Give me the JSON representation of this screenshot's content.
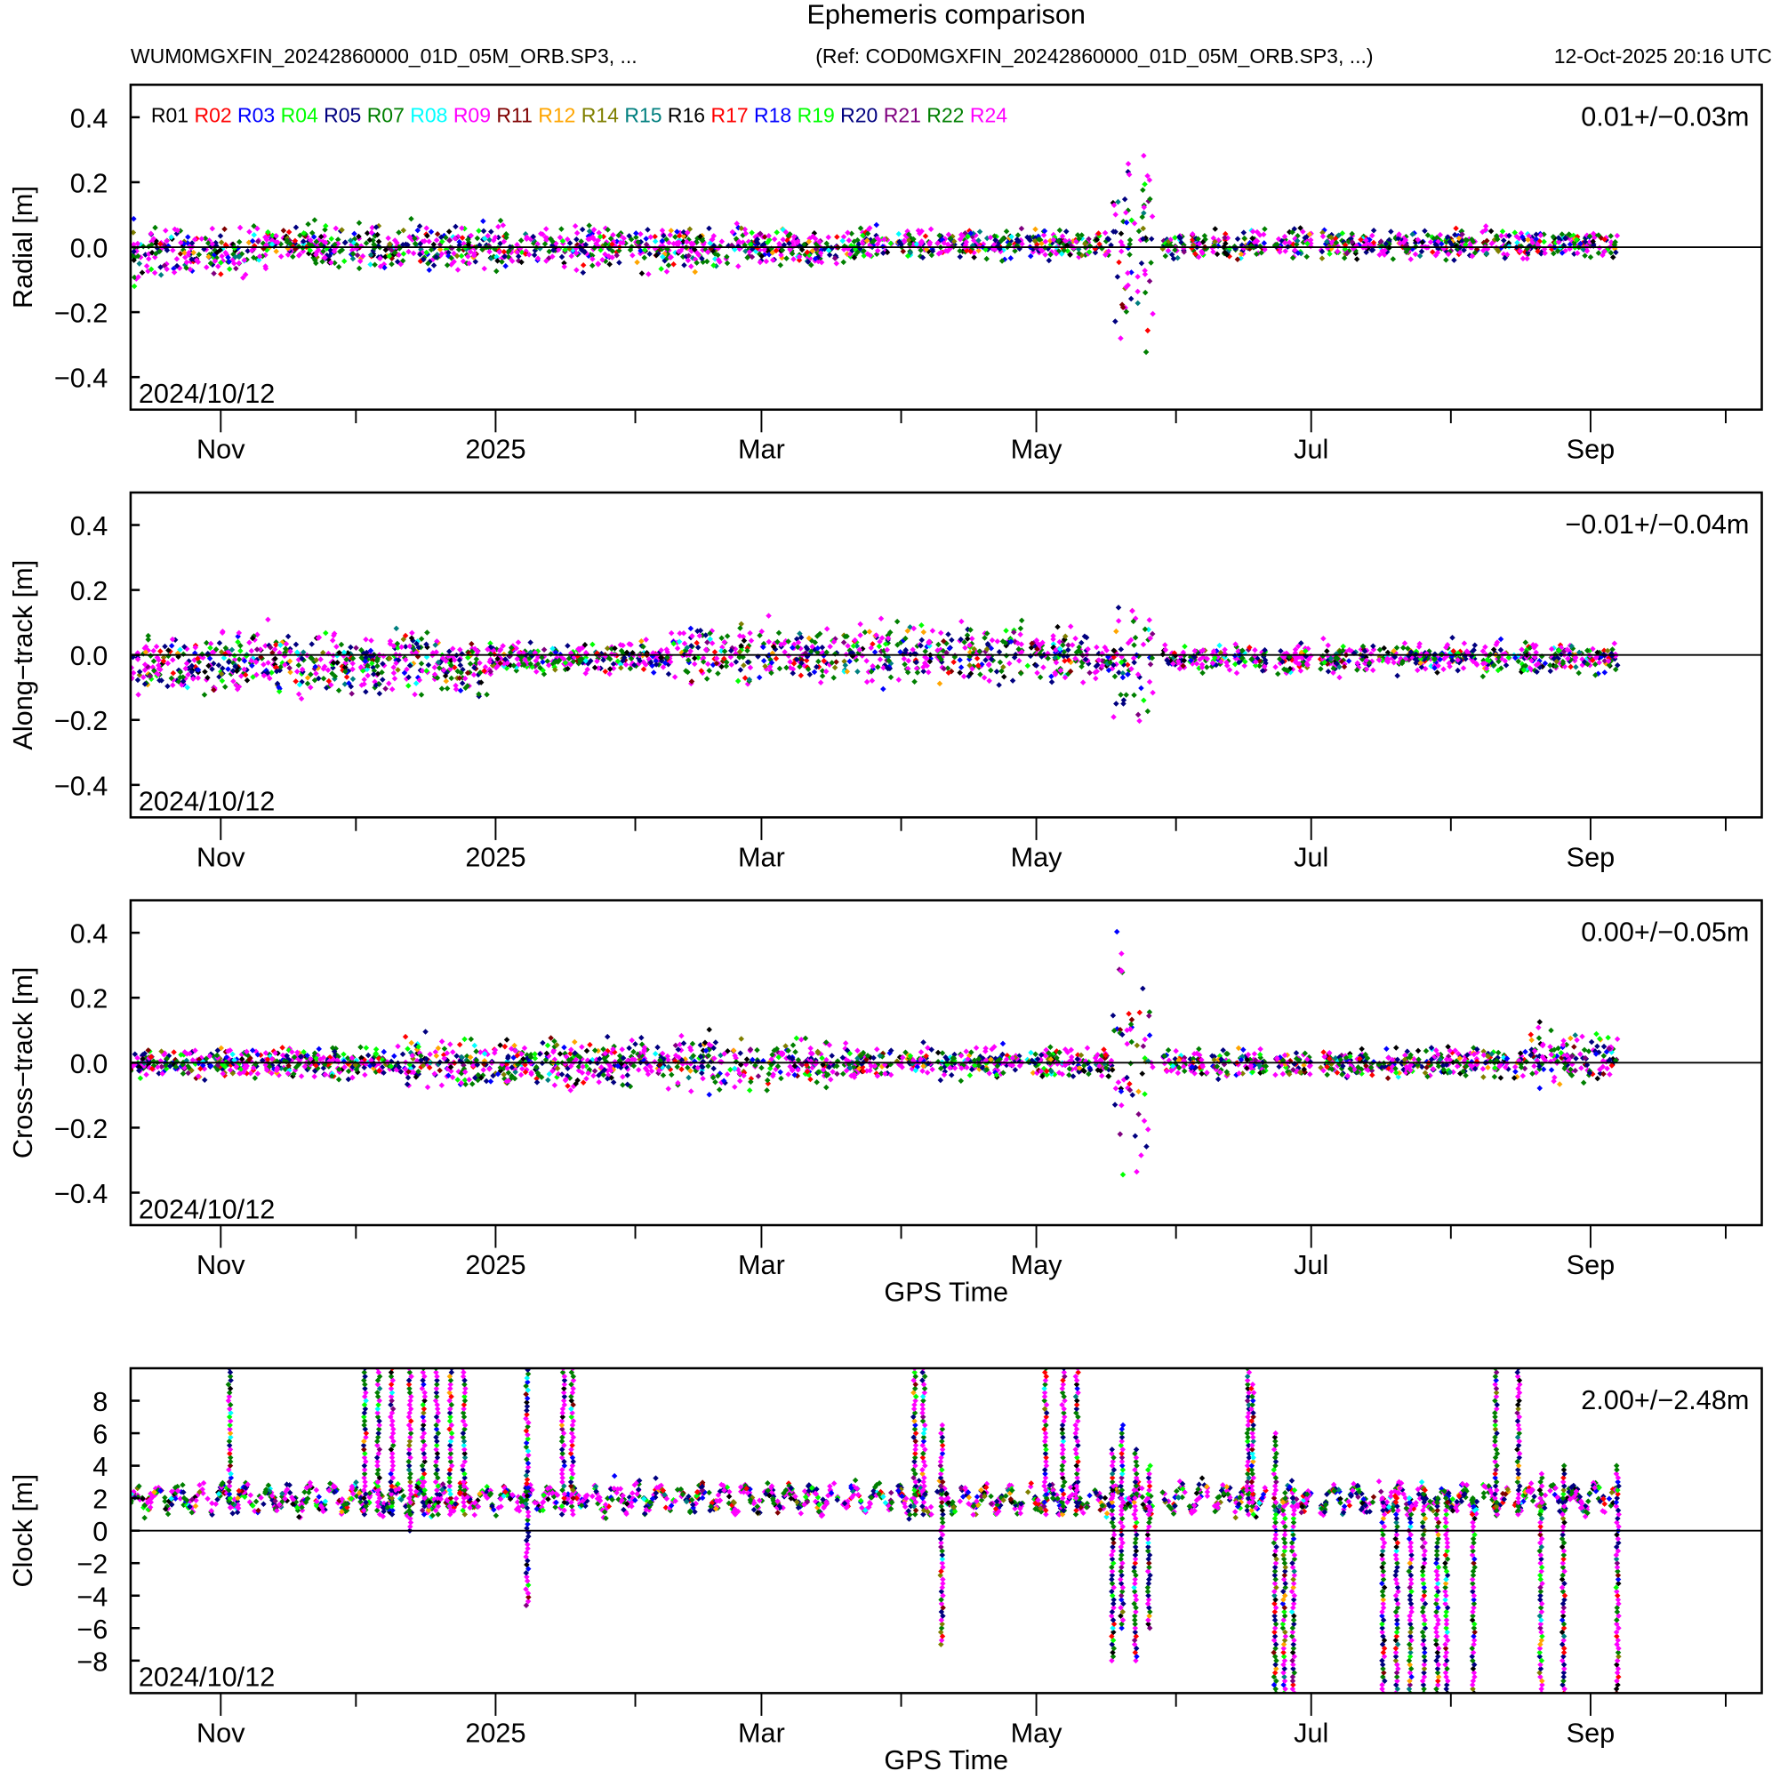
{
  "chart_data": {
    "type": "scatter",
    "title": "Ephemeris comparison",
    "subtitle_left": "WUM0MGXFIN_20242860000_01D_05M_ORB.SP3, ...",
    "subtitle_ref": "(Ref: COD0MGXFIN_20242860000_01D_05M_ORB.SP3, ...)",
    "timestamp": "12-Oct-2025 20:16 UTC",
    "xlabel": "GPS Time",
    "x_units": "days since 2024/10/12",
    "xlim": [
      0,
      362
    ],
    "x_ticks": [
      {
        "label": "Nov",
        "day": 20,
        "major": true
      },
      {
        "label": "",
        "day": 50,
        "major": false
      },
      {
        "label": "2025",
        "day": 81,
        "major": true
      },
      {
        "label": "",
        "day": 112,
        "major": false
      },
      {
        "label": "Mar",
        "day": 140,
        "major": true
      },
      {
        "label": "",
        "day": 171,
        "major": false
      },
      {
        "label": "May",
        "day": 201,
        "major": true
      },
      {
        "label": "",
        "day": 232,
        "major": false
      },
      {
        "label": "Jul",
        "day": 262,
        "major": true
      },
      {
        "label": "",
        "day": 293,
        "major": false
      },
      {
        "label": "Sep",
        "day": 324,
        "major": true
      },
      {
        "label": "",
        "day": 354,
        "major": false
      }
    ],
    "series": [
      {
        "name": "R01",
        "color": "#000000"
      },
      {
        "name": "R02",
        "color": "#ff0000"
      },
      {
        "name": "R03",
        "color": "#0000ff"
      },
      {
        "name": "R04",
        "color": "#00ff00"
      },
      {
        "name": "R05",
        "color": "#00007f"
      },
      {
        "name": "R07",
        "color": "#007f00"
      },
      {
        "name": "R08",
        "color": "#00ffff"
      },
      {
        "name": "R09",
        "color": "#ff00ff"
      },
      {
        "name": "R11",
        "color": "#7f0000"
      },
      {
        "name": "R12",
        "color": "#ffa500"
      },
      {
        "name": "R14",
        "color": "#7f7f00"
      },
      {
        "name": "R15",
        "color": "#007f7f"
      },
      {
        "name": "R16",
        "color": "#000000"
      },
      {
        "name": "R17",
        "color": "#ff0000"
      },
      {
        "name": "R18",
        "color": "#0000ff"
      },
      {
        "name": "R19",
        "color": "#00ff00"
      },
      {
        "name": "R20",
        "color": "#00007f"
      },
      {
        "name": "R21",
        "color": "#7f007f"
      },
      {
        "name": "R22",
        "color": "#007f00"
      },
      {
        "name": "R24",
        "color": "#ff00ff"
      }
    ],
    "data_segments_days": [
      [
        0,
        157
      ],
      [
        158,
        169
      ],
      [
        170,
        178
      ],
      [
        179,
        183
      ],
      [
        184,
        198
      ],
      [
        199,
        213
      ],
      [
        214,
        227
      ],
      [
        229,
        234
      ],
      [
        235,
        239
      ],
      [
        240,
        244
      ],
      [
        245,
        252
      ],
      [
        254,
        262
      ],
      [
        264,
        276
      ],
      [
        277,
        299
      ],
      [
        300,
        306
      ],
      [
        307,
        314
      ],
      [
        315,
        330
      ]
    ],
    "panels": [
      {
        "id": "radial",
        "ylabel": "Radial [m]",
        "ylim": [
          -0.5,
          0.5
        ],
        "yticks": [
          -0.4,
          -0.2,
          0.0,
          0.2,
          0.4
        ],
        "ytick_labels": [
          "−0.4",
          "−0.2",
          "0.0",
          "0.2",
          "0.4"
        ],
        "stat": "0.01+/−0.03m",
        "date_label": "2024/10/12",
        "mean": 0.01,
        "std": 0.03,
        "show_legend": true,
        "show_xlabel": false,
        "bursts": [
          [
            0,
            30,
            0.06,
            -0.05
          ],
          [
            40,
            157,
            0.05,
            -0.02
          ],
          [
            218,
            227,
            0.25,
            0
          ]
        ]
      },
      {
        "id": "along-track",
        "ylabel": "Along−track [m]",
        "ylim": [
          -0.5,
          0.5
        ],
        "yticks": [
          -0.4,
          -0.2,
          0.0,
          0.2,
          0.4
        ],
        "ytick_labels": [
          "−0.4",
          "−0.2",
          "0.0",
          "0.2",
          "0.4"
        ],
        "stat": "−0.01+/−0.04m",
        "date_label": "2024/10/12",
        "mean": -0.01,
        "std": 0.04,
        "show_legend": false,
        "show_xlabel": false,
        "bursts": [
          [
            0,
            80,
            0.07,
            -0.03
          ],
          [
            120,
            215,
            0.07,
            0.03
          ],
          [
            218,
            227,
            0.18,
            0
          ]
        ]
      },
      {
        "id": "cross-track",
        "ylabel": "Cross−track [m]",
        "ylim": [
          -0.5,
          0.5
        ],
        "yticks": [
          -0.4,
          -0.2,
          0.0,
          0.2,
          0.4
        ],
        "ytick_labels": [
          "−0.4",
          "−0.2",
          "0.0",
          "0.2",
          "0.4"
        ],
        "stat": "0.00+/−0.05m",
        "date_label": "2024/10/12",
        "mean": 0.0,
        "std": 0.05,
        "show_legend": false,
        "show_xlabel": true,
        "bursts": [
          [
            60,
            160,
            0.06,
            0
          ],
          [
            218,
            227,
            0.3,
            0
          ],
          [
            310,
            330,
            0.06,
            0.03
          ]
        ]
      },
      {
        "id": "clock",
        "ylabel": "Clock [m]",
        "ylim": [
          -10,
          10
        ],
        "yticks": [
          -8,
          -6,
          -4,
          -2,
          0,
          2,
          4,
          6,
          8
        ],
        "ytick_labels": [
          "−8",
          "−6",
          "−4",
          "−2",
          "0",
          "2",
          "4",
          "6",
          "8"
        ],
        "stat": "2.00+/−2.48m",
        "date_label": "2024/10/12",
        "mean": 2.0,
        "std": 2.48,
        "show_legend": false,
        "show_xlabel": true,
        "base_mean": 2.0,
        "base_spread": 0.7,
        "spikes": [
          [
            22,
            2,
            10
          ],
          [
            52,
            1,
            10
          ],
          [
            55,
            1,
            10
          ],
          [
            58,
            1,
            10
          ],
          [
            62,
            0,
            10
          ],
          [
            65,
            1,
            10
          ],
          [
            68,
            1,
            10
          ],
          [
            71,
            1,
            10
          ],
          [
            74,
            1,
            10
          ],
          [
            88,
            -4.6,
            10
          ],
          [
            96,
            1,
            10
          ],
          [
            98,
            1,
            10
          ],
          [
            174,
            1,
            10
          ],
          [
            176,
            1,
            10
          ],
          [
            180,
            -7,
            6.5
          ],
          [
            203,
            1,
            10
          ],
          [
            207,
            1,
            10
          ],
          [
            210,
            1,
            10
          ],
          [
            218,
            -8,
            5
          ],
          [
            220,
            -6,
            6.5
          ],
          [
            223,
            -8,
            5
          ],
          [
            226,
            -6,
            4
          ],
          [
            248,
            1,
            10
          ],
          [
            249,
            1,
            9
          ],
          [
            254,
            -10,
            6
          ],
          [
            256,
            -10,
            2
          ],
          [
            258,
            -10,
            2
          ],
          [
            278,
            -10,
            2
          ],
          [
            281,
            -10,
            2
          ],
          [
            284,
            -10,
            2
          ],
          [
            287,
            -10,
            2.5
          ],
          [
            290,
            -10,
            2
          ],
          [
            292,
            -10,
            2
          ],
          [
            298,
            -10,
            2
          ],
          [
            303,
            1,
            10
          ],
          [
            308,
            1,
            10
          ],
          [
            313,
            -10,
            3.5
          ],
          [
            318,
            -10,
            4
          ],
          [
            330,
            -10,
            4
          ]
        ]
      }
    ]
  }
}
